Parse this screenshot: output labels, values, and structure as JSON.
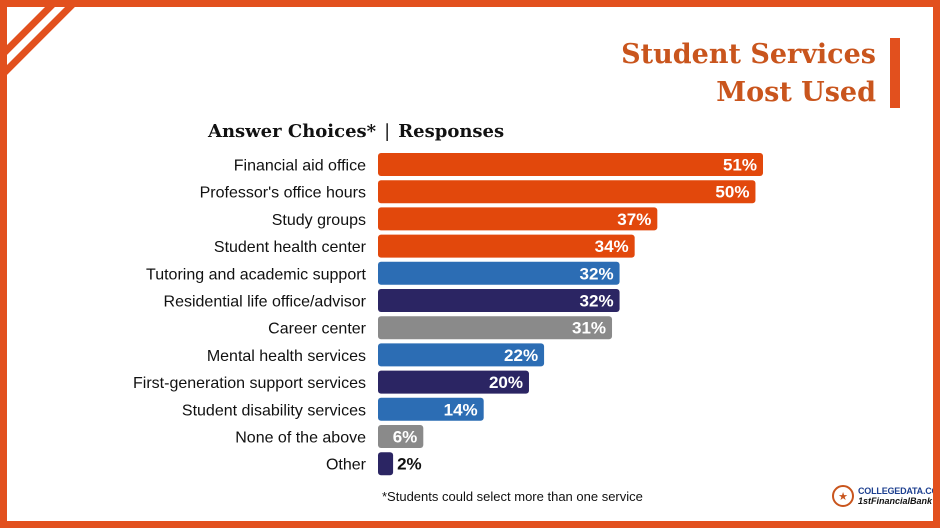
{
  "title": {
    "line1": "Student Services",
    "line2": "Most Used"
  },
  "header": {
    "left": "Answer Choices*",
    "separator": "|",
    "right": "Responses"
  },
  "footnote": "*Students could select more than one service",
  "logo": {
    "line1": "COLLEGEDATA.COM",
    "line2": "1stFinancialBank",
    "icon": "college-seal-icon"
  },
  "colors": {
    "orange": "#e2480c",
    "blue": "#2c6db4",
    "navy": "#2b2563",
    "gray": "#8a8a8a",
    "brand": "#c9551d"
  },
  "chart_data": {
    "type": "bar",
    "orientation": "horizontal",
    "title": "Student Services Most Used",
    "xlim": [
      0,
      51
    ],
    "value_suffix": "%",
    "categories": [
      "Financial aid office",
      "Professor's office hours",
      "Study groups",
      "Student health center",
      "Tutoring and academic support",
      "Residential life office/advisor",
      "Career center",
      "Mental health services",
      "First-generation support services",
      "Student disability services",
      "None of the above",
      "Other"
    ],
    "values": [
      51,
      50,
      37,
      34,
      32,
      32,
      31,
      22,
      20,
      14,
      6,
      2
    ],
    "bar_colors": [
      "orange",
      "orange",
      "orange",
      "orange",
      "blue",
      "navy",
      "gray",
      "blue",
      "navy",
      "blue",
      "gray",
      "navy"
    ]
  }
}
